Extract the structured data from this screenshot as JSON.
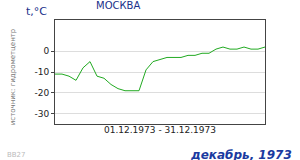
{
  "chart_data": {
    "type": "line",
    "title": "МОСКВА",
    "ylabel": "t,°C",
    "xlabel": "01.12.1973 - 31.12.1973",
    "annotations": [
      "источник: гидрометцентр",
      "декабрь, 1973",
      "ВВ27"
    ],
    "categories": [
      null,
      null,
      null,
      null,
      null,
      null,
      null,
      null,
      null,
      null,
      null,
      null,
      null,
      null,
      null,
      null,
      null,
      null,
      null,
      null,
      null,
      null,
      null,
      null,
      null,
      null,
      null,
      null,
      null,
      null,
      null
    ],
    "values": [
      -11,
      -11,
      -12,
      -14,
      -8,
      -5,
      -12,
      -13,
      -16,
      -18,
      -19,
      -19,
      -19,
      -9,
      -5,
      -4,
      -3,
      -3,
      -3,
      -2,
      -2,
      -1,
      -1,
      1,
      2,
      1,
      1,
      2,
      1,
      1,
      2
    ],
    "color": "#22aa22",
    "ylim": [
      -35,
      15
    ],
    "yticks": [
      -30,
      -20,
      -10,
      0
    ],
    "grid": true,
    "tick_labels": "y"
  }
}
